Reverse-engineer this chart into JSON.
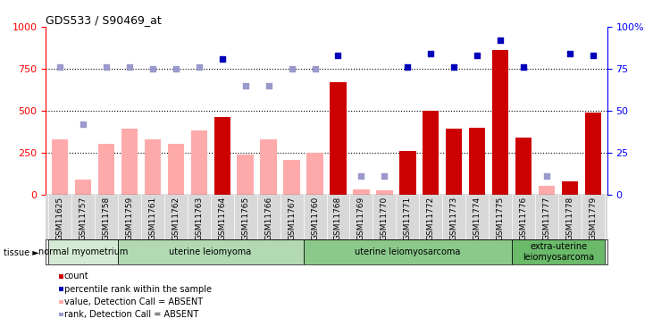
{
  "title": "GDS533 / S90469_at",
  "samples": [
    "GSM11625",
    "GSM11757",
    "GSM11758",
    "GSM11759",
    "GSM11761",
    "GSM11762",
    "GSM11763",
    "GSM11764",
    "GSM11765",
    "GSM11766",
    "GSM11767",
    "GSM11760",
    "GSM11768",
    "GSM11769",
    "GSM11770",
    "GSM11771",
    "GSM11772",
    "GSM11773",
    "GSM11774",
    "GSM11775",
    "GSM11776",
    "GSM11777",
    "GSM11778",
    "GSM11779"
  ],
  "count_values": [
    330,
    90,
    300,
    390,
    330,
    300,
    380,
    460,
    240,
    330,
    205,
    250,
    670,
    30,
    25,
    260,
    500,
    390,
    400,
    860,
    340,
    50,
    80,
    490
  ],
  "count_is_absent": [
    true,
    true,
    true,
    true,
    true,
    true,
    true,
    false,
    true,
    true,
    true,
    true,
    false,
    true,
    true,
    false,
    false,
    false,
    false,
    false,
    false,
    true,
    false,
    false
  ],
  "rank_values": [
    76,
    42,
    76,
    76,
    75,
    75,
    76,
    81,
    65,
    65,
    75,
    75,
    83,
    11,
    11,
    76,
    84,
    76,
    83,
    92,
    76,
    11,
    84,
    83
  ],
  "rank_is_absent": [
    true,
    true,
    true,
    true,
    true,
    true,
    true,
    false,
    true,
    true,
    true,
    true,
    false,
    true,
    true,
    false,
    false,
    false,
    false,
    false,
    false,
    true,
    false,
    false
  ],
  "tissue_groups": [
    {
      "label": "normal myometrium",
      "start": 0,
      "end": 3
    },
    {
      "label": "uterine leiomyoma",
      "start": 3,
      "end": 11
    },
    {
      "label": "uterine leiomyosarcoma",
      "start": 11,
      "end": 20
    },
    {
      "label": "extra-uterine\nleiomyosarcoma",
      "start": 20,
      "end": 24
    }
  ],
  "tissue_colors": [
    "#d4ead4",
    "#b2d9b2",
    "#8bc98b",
    "#6aba6a"
  ],
  "ylim_left": [
    0,
    1000
  ],
  "ylim_right": [
    0,
    100
  ],
  "yticks_left": [
    0,
    250,
    500,
    750,
    1000
  ],
  "yticks_right": [
    0,
    25,
    50,
    75,
    100
  ],
  "color_count_present": "#cc0000",
  "color_count_absent": "#ffaaaa",
  "color_rank_present": "#0000bb",
  "color_rank_absent": "#9999cc",
  "bar_width": 0.7,
  "xlabel_bg": "#d8d8d8",
  "legend_items": [
    {
      "color": "#cc0000",
      "label": "count"
    },
    {
      "color": "#0000bb",
      "label": "percentile rank within the sample"
    },
    {
      "color": "#ffaaaa",
      "label": "value, Detection Call = ABSENT"
    },
    {
      "color": "#9999cc",
      "label": "rank, Detection Call = ABSENT"
    }
  ]
}
